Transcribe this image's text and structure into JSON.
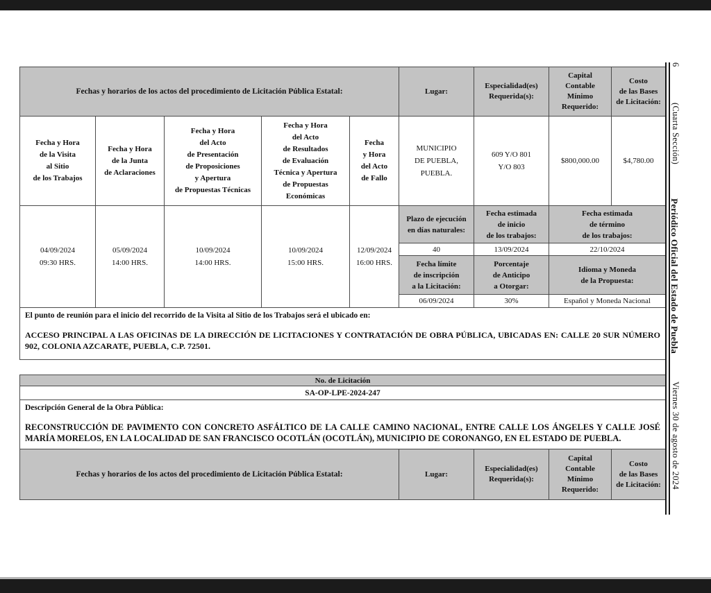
{
  "colors": {
    "header_gray": "#c3c3c3",
    "bar_black": "#1b1b1b",
    "border": "#4a4a4a"
  },
  "margin": {
    "page_number": "6",
    "section": "(Cuarta Sección)",
    "journal": "Periódico Oficial del Estado de Puebla",
    "date": "Viernes 30 de agosto de 2024"
  },
  "headers": {
    "fechas": "Fechas y horarios de los actos del procedimiento de Licitación Pública Estatal:",
    "lugar": "Lugar:",
    "especialidad": "Especialidad(es)\nRequerida(s):",
    "capital": "Capital\nContable\nMínimo\nRequerido:",
    "costo": "Costo\nde las Bases\nde Licitación:"
  },
  "licitacion1": {
    "subheaders": [
      "Fecha y Hora\nde la Visita\nal Sitio\nde los Trabajos",
      "Fecha y Hora\nde la Junta\nde Aclaraciones",
      "Fecha y Hora\ndel Acto\nde Presentación\nde Proposiciones\ny Apertura\nde Propuestas Técnicas",
      "Fecha y Hora\ndel Acto\nde Resultados\nde Evaluación\nTécnica y Apertura\nde Propuestas\nEconómicas",
      "Fecha\ny Hora\ndel Acto\nde Fallo"
    ],
    "fechas_actos": [
      "04/09/2024\n09:30 HRS.",
      "05/09/2024\n14:00 HRS.",
      "10/09/2024\n14:00 HRS.",
      "10/09/2024\n15:00 HRS.",
      "12/09/2024\n16:00 HRS."
    ],
    "lugar": "MUNICIPIO\nDE PUEBLA,\nPUEBLA.",
    "especialidad": "609 Y/O 801\nY/O 803",
    "capital": "$800,000.00",
    "costo": "$4,780.00",
    "plazo_label": "Plazo de ejecución\nen días naturales:",
    "plazo": "40",
    "inicio_label": "Fecha estimada\nde inicio\nde los trabajos:",
    "inicio": "13/09/2024",
    "termino_label": "Fecha estimada\nde término\nde los trabajos:",
    "termino": "22/10/2024",
    "limite_label": "Fecha límite\nde inscripción\na la Licitación:",
    "limite": "06/09/2024",
    "anticipo_label": "Porcentaje\nde Anticipo\na Otorgar:",
    "anticipo": "30%",
    "idioma_label": "Idioma y Moneda\nde la Propuesta:",
    "idioma": "Español y Moneda Nacional",
    "punto_reunion_intro": "El punto de reunión para el inicio del recorrido de la Visita al Sitio de los Trabajos será el ubicado en:",
    "punto_reunion": "ACCESO PRINCIPAL A LAS OFICINAS DE LA DIRECCIÓN DE LICITACIONES Y CONTRATACIÓN DE OBRA PÚBLICA, UBICADAS EN: CALLE 20 SUR NÚMERO 902, COLONIA AZCARATE, PUEBLA, C.P. 72501."
  },
  "licitacion2": {
    "no_licitacion_label": "No. de Licitación",
    "no_licitacion": "SA-OP-LPE-2024-247",
    "descripcion_label": "Descripción General de la Obra Pública:",
    "descripcion": "RECONSTRUCCIÓN DE PAVIMENTO CON CONCRETO ASFÁLTICO DE LA CALLE CAMINO NACIONAL, ENTRE CALLE LOS ÁNGELES Y CALLE JOSÉ MARÍA MORELOS, EN LA LOCALIDAD DE SAN FRANCISCO OCOTLÁN (OCOTLÁN), MUNICIPIO DE CORONANGO, EN EL ESTADO DE PUEBLA."
  }
}
